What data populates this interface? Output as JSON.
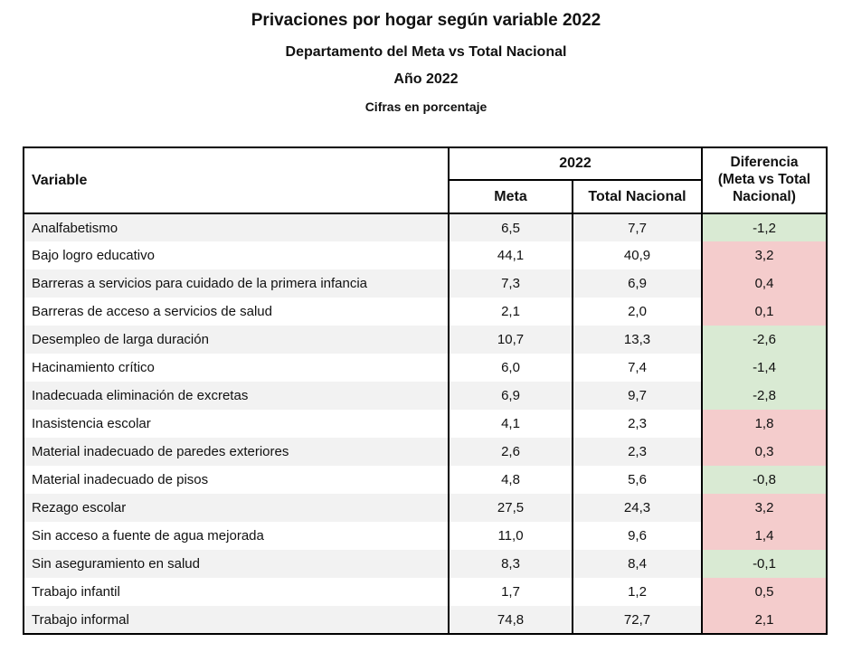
{
  "titles": {
    "main": "Privaciones por hogar según variable 2022",
    "sub1": "Departamento del Meta vs Total Nacional",
    "sub2": "Año 2022",
    "sub3": "Cifras en porcentaje"
  },
  "colors": {
    "diff_negative_green": "#d9ead3",
    "diff_positive_pink": "#f4cccc",
    "row_stripe": "#f2f2f2",
    "border": "#000000"
  },
  "chart_data": {
    "type": "table",
    "title": "Privaciones por hogar según variable 2022",
    "headers": {
      "variable": "Variable",
      "year_group": "2022",
      "meta": "Meta",
      "total_nacional": "Total Nacional",
      "diferencia": "Diferencia\n(Meta vs Total\nNacional)"
    },
    "rows": [
      {
        "variable": "Analfabetismo",
        "meta": "6,5",
        "total": "7,7",
        "diff": "-1,2",
        "diff_color": "green"
      },
      {
        "variable": "Bajo logro educativo",
        "meta": "44,1",
        "total": "40,9",
        "diff": "3,2",
        "diff_color": "pink"
      },
      {
        "variable": "Barreras a servicios para cuidado de la primera infancia",
        "meta": "7,3",
        "total": "6,9",
        "diff": "0,4",
        "diff_color": "pink"
      },
      {
        "variable": "Barreras de acceso a servicios de salud",
        "meta": "2,1",
        "total": "2,0",
        "diff": "0,1",
        "diff_color": "pink"
      },
      {
        "variable": "Desempleo de larga duración",
        "meta": "10,7",
        "total": "13,3",
        "diff": "-2,6",
        "diff_color": "green"
      },
      {
        "variable": "Hacinamiento crítico",
        "meta": "6,0",
        "total": "7,4",
        "diff": "-1,4",
        "diff_color": "green"
      },
      {
        "variable": "Inadecuada eliminación de excretas",
        "meta": "6,9",
        "total": "9,7",
        "diff": "-2,8",
        "diff_color": "green"
      },
      {
        "variable": "Inasistencia escolar",
        "meta": "4,1",
        "total": "2,3",
        "diff": "1,8",
        "diff_color": "pink"
      },
      {
        "variable": "Material inadecuado de paredes exteriores",
        "meta": "2,6",
        "total": "2,3",
        "diff": "0,3",
        "diff_color": "pink"
      },
      {
        "variable": "Material inadecuado de pisos",
        "meta": "4,8",
        "total": "5,6",
        "diff": "-0,8",
        "diff_color": "green"
      },
      {
        "variable": "Rezago escolar",
        "meta": "27,5",
        "total": "24,3",
        "diff": "3,2",
        "diff_color": "pink"
      },
      {
        "variable": "Sin acceso a fuente de agua mejorada",
        "meta": "11,0",
        "total": "9,6",
        "diff": "1,4",
        "diff_color": "pink"
      },
      {
        "variable": "Sin aseguramiento en salud",
        "meta": "8,3",
        "total": "8,4",
        "diff": "-0,1",
        "diff_color": "green"
      },
      {
        "variable": "Trabajo infantil",
        "meta": "1,7",
        "total": "1,2",
        "diff": "0,5",
        "diff_color": "pink"
      },
      {
        "variable": "Trabajo informal",
        "meta": "74,8",
        "total": "72,7",
        "diff": "2,1",
        "diff_color": "pink"
      }
    ]
  }
}
